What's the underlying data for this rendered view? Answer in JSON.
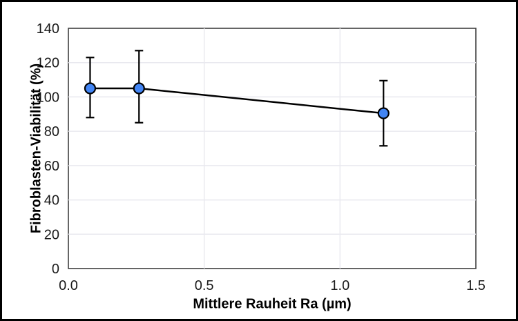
{
  "chart_data": {
    "type": "line",
    "title": "",
    "xlabel": "Mittlere Rauheit Ra (µm)",
    "ylabel": "Fibroblasten-Viabilität (%)",
    "xlim": [
      0,
      1.5
    ],
    "ylim": [
      0,
      140
    ],
    "xticks": [
      0,
      0.5,
      1,
      1.5
    ],
    "xtick_labels": [
      "0.0",
      "0.5",
      "1.0",
      "1.5"
    ],
    "yticks": [
      0,
      20,
      40,
      60,
      80,
      100,
      120,
      140
    ],
    "ytick_labels": [
      "0",
      "20",
      "40",
      "60",
      "80",
      "100",
      "120",
      "140"
    ],
    "grid": true,
    "legend": false,
    "series": [
      {
        "name": "Fibroblasten-Viabilität",
        "points": [
          {
            "x": 0.08,
            "y": 105,
            "y_upper": 123,
            "y_lower": 88
          },
          {
            "x": 0.26,
            "y": 105,
            "y_upper": 127,
            "y_lower": 85
          },
          {
            "x": 1.16,
            "y": 90.5,
            "y_upper": 109.5,
            "y_lower": 71.5
          }
        ]
      }
    ],
    "colors": {
      "marker_fill": "#4285f4",
      "marker_outline": "#000000",
      "line": "#000000",
      "error_bar": "#000000",
      "gridline": "#e9e9ef",
      "plot_border": "#3f3f3f",
      "background": "#ffffff",
      "frame": "#000000"
    }
  }
}
